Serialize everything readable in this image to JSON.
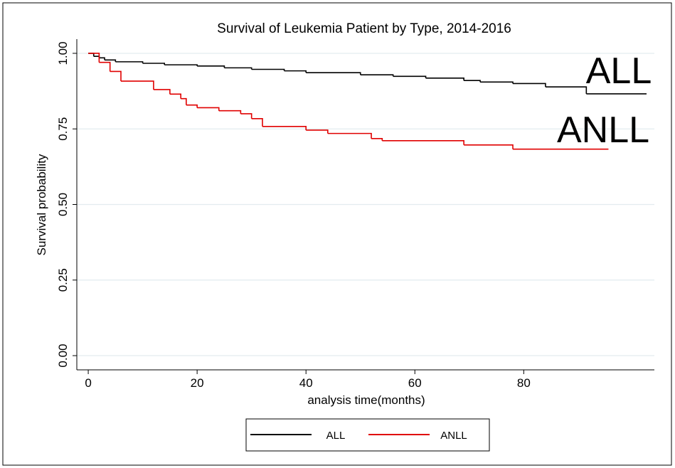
{
  "chart_data": {
    "type": "step",
    "title": "Survival of Leukemia Patient by Type, 2014-2016",
    "x_label": "analysis time(months)",
    "y_label": "Survival probability",
    "xlim": [
      -2.1,
      104
    ],
    "ylim": [
      -0.047,
      1.047
    ],
    "xticks": [
      0,
      20,
      40,
      60,
      80
    ],
    "yticks": [
      {
        "value": 0,
        "label": "0.00"
      },
      {
        "value": 0.25,
        "label": "0.25"
      },
      {
        "value": 0.5,
        "label": "0.50"
      },
      {
        "value": 0.75,
        "label": "0.75"
      },
      {
        "value": 1,
        "label": "1.00"
      }
    ],
    "grid": true,
    "legend": "bottom",
    "annotations": [
      "ALL",
      "ANLL"
    ],
    "series": [
      {
        "name": "ALL",
        "color": "#000000",
        "x": [
          0,
          1,
          2,
          3,
          5,
          10,
          14,
          20,
          25,
          30,
          36,
          40,
          50,
          56,
          62,
          69,
          72,
          78,
          84,
          91.5,
          102.5
        ],
        "values": [
          1.0,
          0.99,
          0.985,
          0.978,
          0.972,
          0.967,
          0.962,
          0.958,
          0.952,
          0.947,
          0.942,
          0.936,
          0.929,
          0.924,
          0.918,
          0.91,
          0.905,
          0.9,
          0.889,
          0.866,
          0.866
        ]
      },
      {
        "name": "ANLL",
        "color": "#e00000",
        "x": [
          0,
          2,
          4,
          6,
          12,
          15,
          17,
          18,
          20,
          24,
          28,
          30,
          32,
          40,
          44,
          52,
          54,
          69,
          78,
          95.5
        ],
        "values": [
          1.0,
          0.97,
          0.94,
          0.908,
          0.88,
          0.865,
          0.85,
          0.829,
          0.82,
          0.81,
          0.8,
          0.784,
          0.758,
          0.746,
          0.735,
          0.718,
          0.711,
          0.697,
          0.683,
          0.683
        ]
      }
    ]
  }
}
